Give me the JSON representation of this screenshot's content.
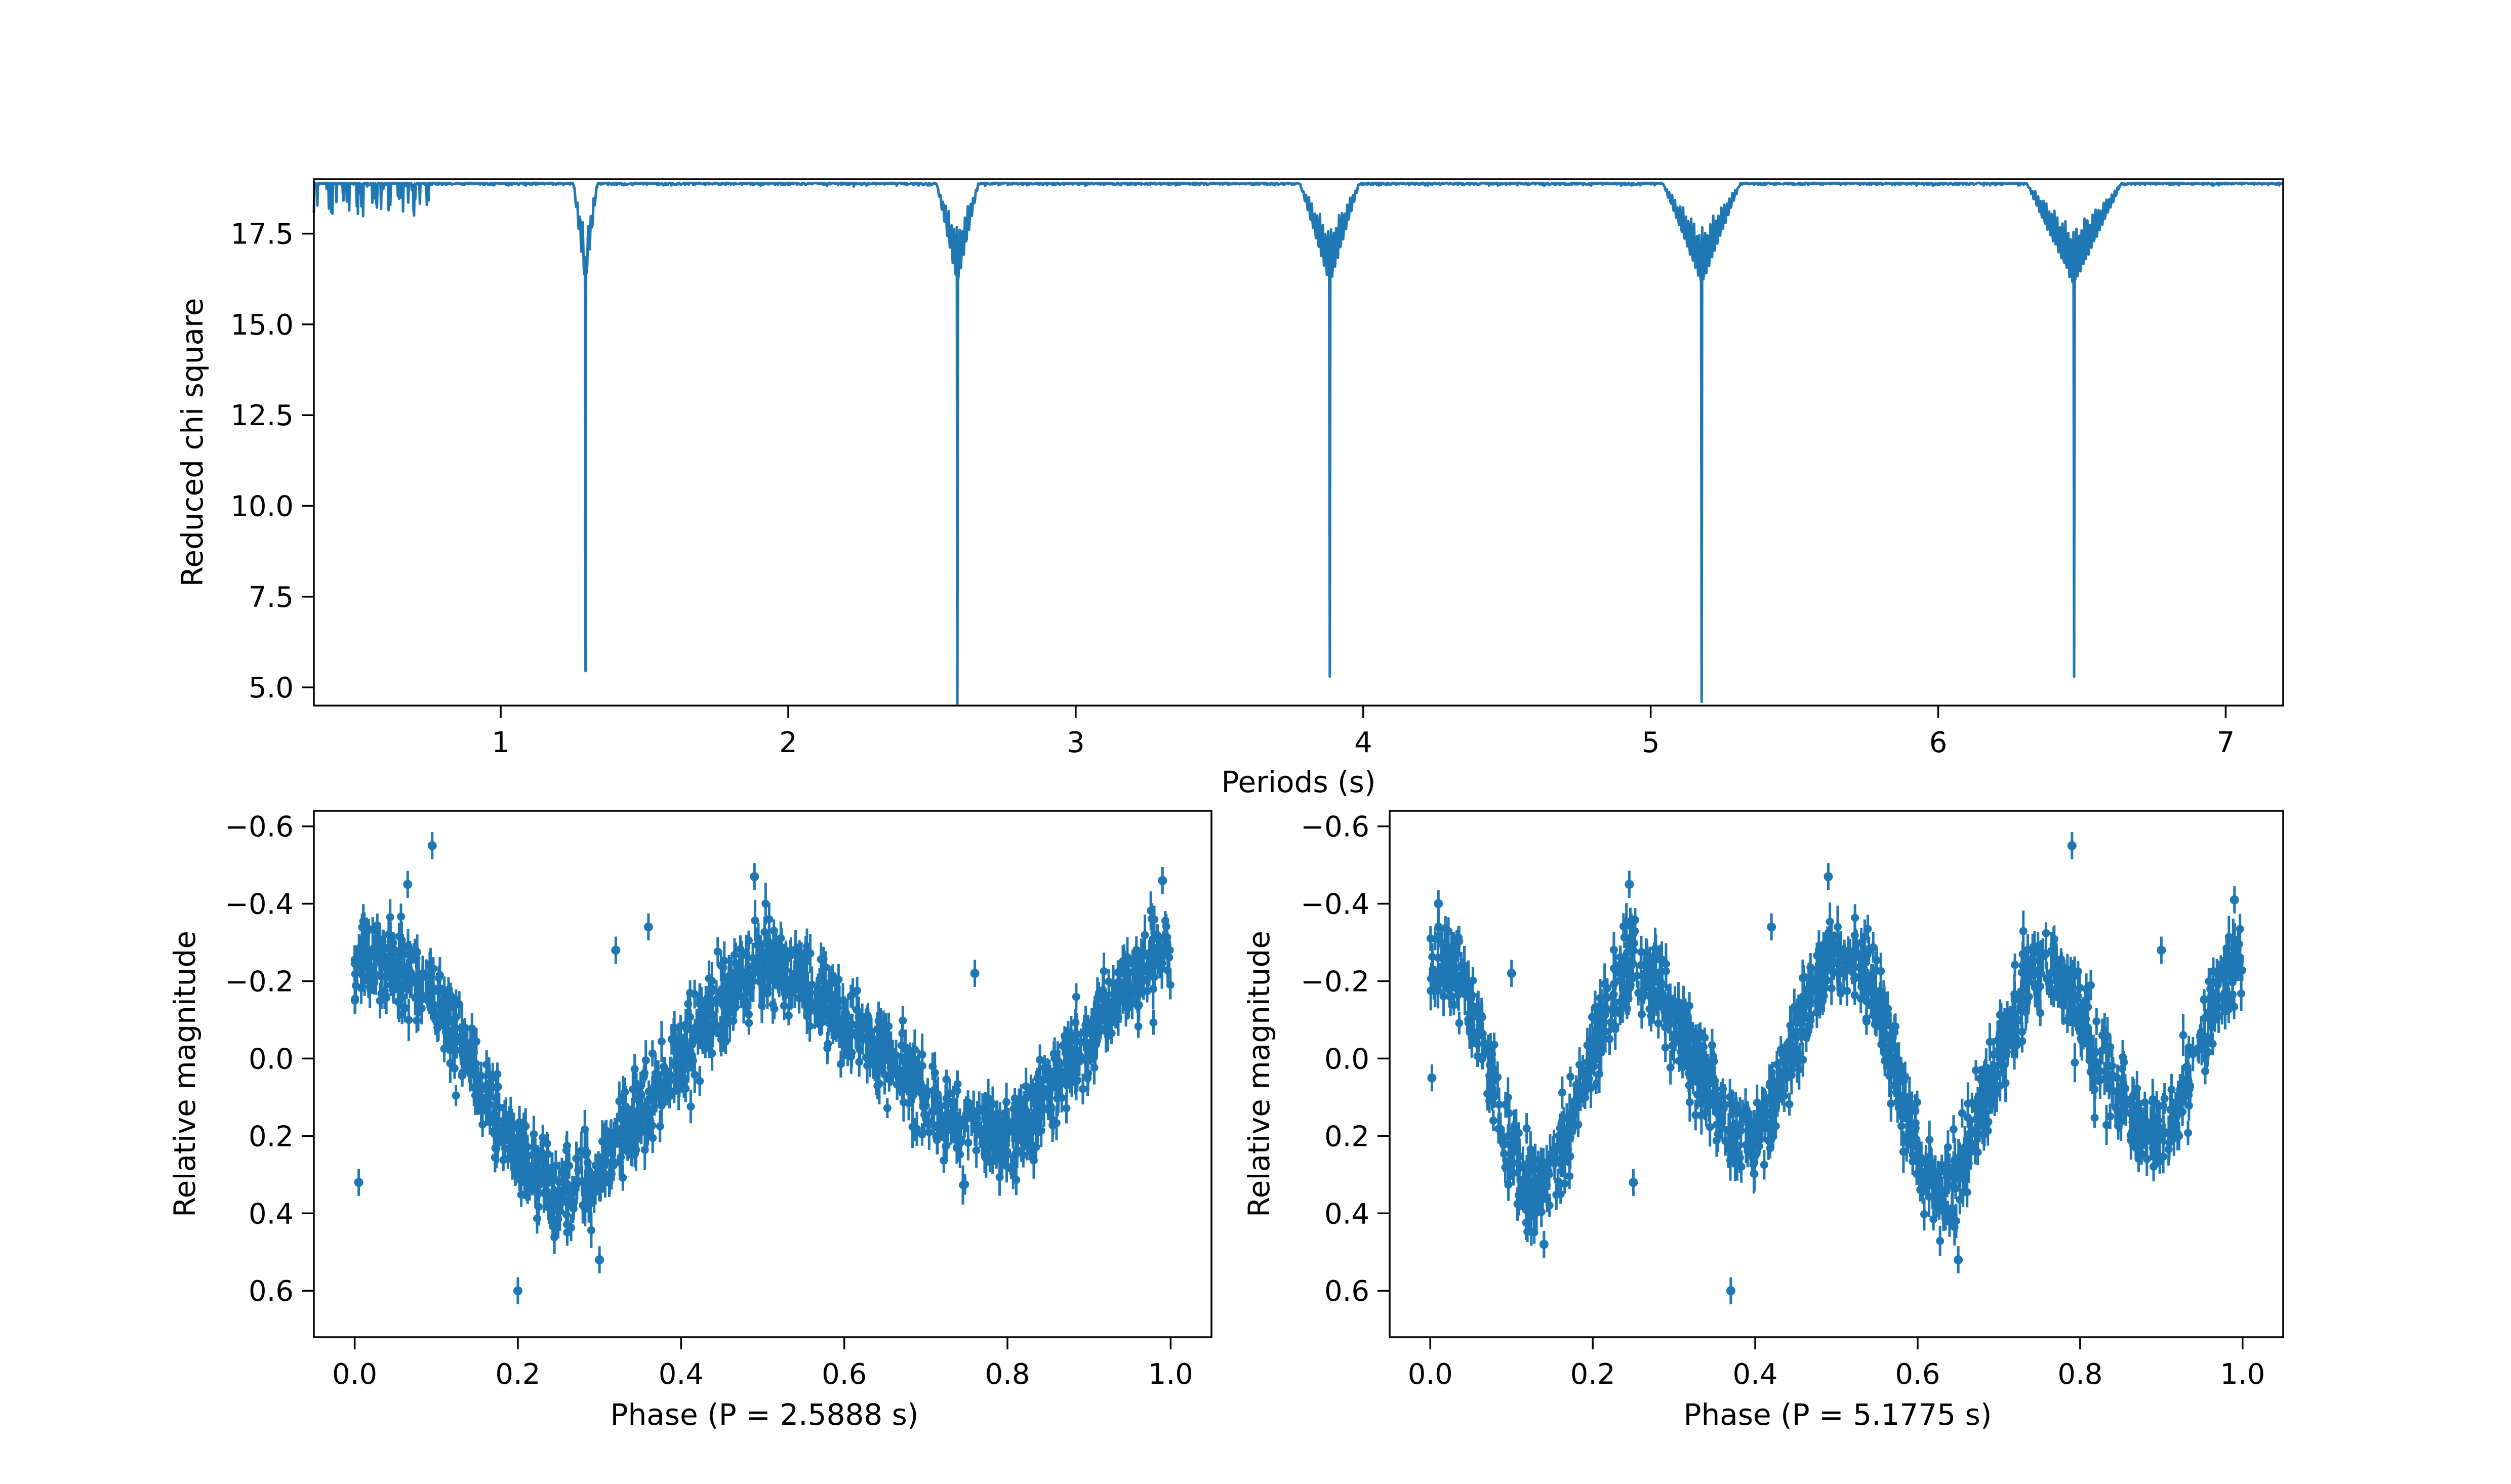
{
  "colors": {
    "series": "#1f77b4",
    "axes": "#000000",
    "background": "#ffffff"
  },
  "chart_data": [
    {
      "type": "line",
      "id": "periodogram",
      "xlabel": "Periods (s)",
      "ylabel": "Reduced chi square",
      "xlim": [
        0.35,
        7.2
      ],
      "ylim": [
        4.5,
        19.0
      ],
      "xticks": [
        1,
        2,
        3,
        4,
        5,
        6,
        7
      ],
      "xtick_labels": [
        "1",
        "2",
        "3",
        "4",
        "5",
        "6",
        "7"
      ],
      "yticks": [
        5.0,
        7.5,
        10.0,
        12.5,
        15.0,
        17.5
      ],
      "ytick_labels": [
        "5.0",
        "7.5",
        "10.0",
        "12.5",
        "15.0",
        "17.5"
      ],
      "y_inverted": false,
      "grid": false,
      "baseline": 18.9,
      "period_range": [
        0.35,
        7.2
      ],
      "dips": [
        {
          "period": 1.2944,
          "min": 5.45
        },
        {
          "period": 2.5888,
          "min": 4.55
        },
        {
          "period": 3.8832,
          "min": 5.3
        },
        {
          "period": 5.1775,
          "min": 4.6
        },
        {
          "period": 6.472,
          "min": 5.3
        }
      ]
    },
    {
      "type": "scatter",
      "id": "fold-p1",
      "xlabel": "Phase (P = 2.5888 s)",
      "ylabel": "Relative magnitude",
      "xlim": [
        -0.05,
        1.05
      ],
      "ylim": [
        0.72,
        -0.64
      ],
      "xticks": [
        0.0,
        0.2,
        0.4,
        0.6,
        0.8,
        1.0
      ],
      "xtick_labels": [
        "0.0",
        "0.2",
        "0.4",
        "0.6",
        "0.8",
        "1.0"
      ],
      "yticks": [
        -0.6,
        -0.4,
        -0.2,
        0.0,
        0.2,
        0.4,
        0.6
      ],
      "ytick_labels": [
        "−0.6",
        "−0.4",
        "−0.2",
        "0.0",
        "0.2",
        "0.4",
        "0.6"
      ],
      "y_inverted": true,
      "grid": false,
      "error_bars": true,
      "trend": {
        "phase": [
          0.0,
          0.05,
          0.1,
          0.15,
          0.2,
          0.25,
          0.3,
          0.35,
          0.4,
          0.45,
          0.5,
          0.55,
          0.6,
          0.65,
          0.7,
          0.75,
          0.8,
          0.85,
          0.9,
          0.95,
          1.0
        ],
        "mag": [
          -0.25,
          -0.25,
          -0.15,
          0.05,
          0.25,
          0.35,
          0.3,
          0.15,
          0.0,
          -0.15,
          -0.25,
          -0.2,
          -0.1,
          0.0,
          0.1,
          0.2,
          0.2,
          0.1,
          -0.05,
          -0.2,
          -0.28
        ]
      },
      "outliers": [
        {
          "phase": 0.005,
          "mag": 0.32
        },
        {
          "phase": 0.095,
          "mag": -0.55
        },
        {
          "phase": 0.065,
          "mag": -0.45
        },
        {
          "phase": 0.32,
          "mag": -0.28
        },
        {
          "phase": 0.36,
          "mag": -0.34
        },
        {
          "phase": 0.49,
          "mag": -0.47
        },
        {
          "phase": 0.76,
          "mag": -0.22
        },
        {
          "phase": 0.99,
          "mag": -0.46
        },
        {
          "phase": 0.2,
          "mag": 0.6
        },
        {
          "phase": 0.3,
          "mag": 0.52
        }
      ]
    },
    {
      "type": "scatter",
      "id": "fold-p2",
      "xlabel": "Phase (P = 5.1775 s)",
      "ylabel": "Relative magnitude",
      "xlim": [
        -0.05,
        1.05
      ],
      "ylim": [
        0.72,
        -0.64
      ],
      "xticks": [
        0.0,
        0.2,
        0.4,
        0.6,
        0.8,
        1.0
      ],
      "xtick_labels": [
        "0.0",
        "0.2",
        "0.4",
        "0.6",
        "0.8",
        "1.0"
      ],
      "yticks": [
        -0.6,
        -0.4,
        -0.2,
        0.0,
        0.2,
        0.4,
        0.6
      ],
      "ytick_labels": [
        "−0.6",
        "−0.4",
        "−0.2",
        "0.0",
        "0.2",
        "0.4",
        "0.6"
      ],
      "y_inverted": true,
      "grid": false,
      "error_bars": true,
      "trend": {
        "phase": [
          0.0,
          0.025,
          0.05,
          0.075,
          0.1,
          0.125,
          0.15,
          0.175,
          0.2,
          0.225,
          0.25,
          0.275,
          0.3,
          0.325,
          0.35,
          0.375,
          0.4,
          0.425,
          0.45,
          0.475,
          0.5,
          0.525,
          0.55,
          0.575,
          0.6,
          0.625,
          0.65,
          0.675,
          0.7,
          0.725,
          0.75,
          0.775,
          0.8,
          0.825,
          0.85,
          0.875,
          0.9,
          0.925,
          0.95,
          0.975,
          1.0
        ],
        "mag": [
          -0.25,
          -0.25,
          -0.15,
          0.05,
          0.25,
          0.35,
          0.3,
          0.15,
          0.0,
          -0.15,
          -0.25,
          -0.2,
          -0.1,
          0.0,
          0.1,
          0.2,
          0.2,
          0.1,
          -0.05,
          -0.2,
          -0.28,
          -0.25,
          -0.15,
          0.05,
          0.25,
          0.35,
          0.3,
          0.15,
          0.0,
          -0.15,
          -0.25,
          -0.2,
          -0.1,
          0.0,
          0.1,
          0.2,
          0.2,
          0.1,
          -0.05,
          -0.2,
          -0.28
        ]
      },
      "outliers": [
        {
          "phase": 0.002,
          "mag": 0.05
        },
        {
          "phase": 0.01,
          "mag": -0.4
        },
        {
          "phase": 0.1,
          "mag": -0.22
        },
        {
          "phase": 0.14,
          "mag": 0.48
        },
        {
          "phase": 0.245,
          "mag": -0.45
        },
        {
          "phase": 0.25,
          "mag": 0.32
        },
        {
          "phase": 0.42,
          "mag": -0.34
        },
        {
          "phase": 0.49,
          "mag": -0.47
        },
        {
          "phase": 0.54,
          "mag": -0.28
        },
        {
          "phase": 0.65,
          "mag": 0.52
        },
        {
          "phase": 0.79,
          "mag": -0.55
        },
        {
          "phase": 0.9,
          "mag": -0.28
        },
        {
          "phase": 0.99,
          "mag": -0.41
        },
        {
          "phase": 0.37,
          "mag": 0.6
        }
      ]
    }
  ]
}
